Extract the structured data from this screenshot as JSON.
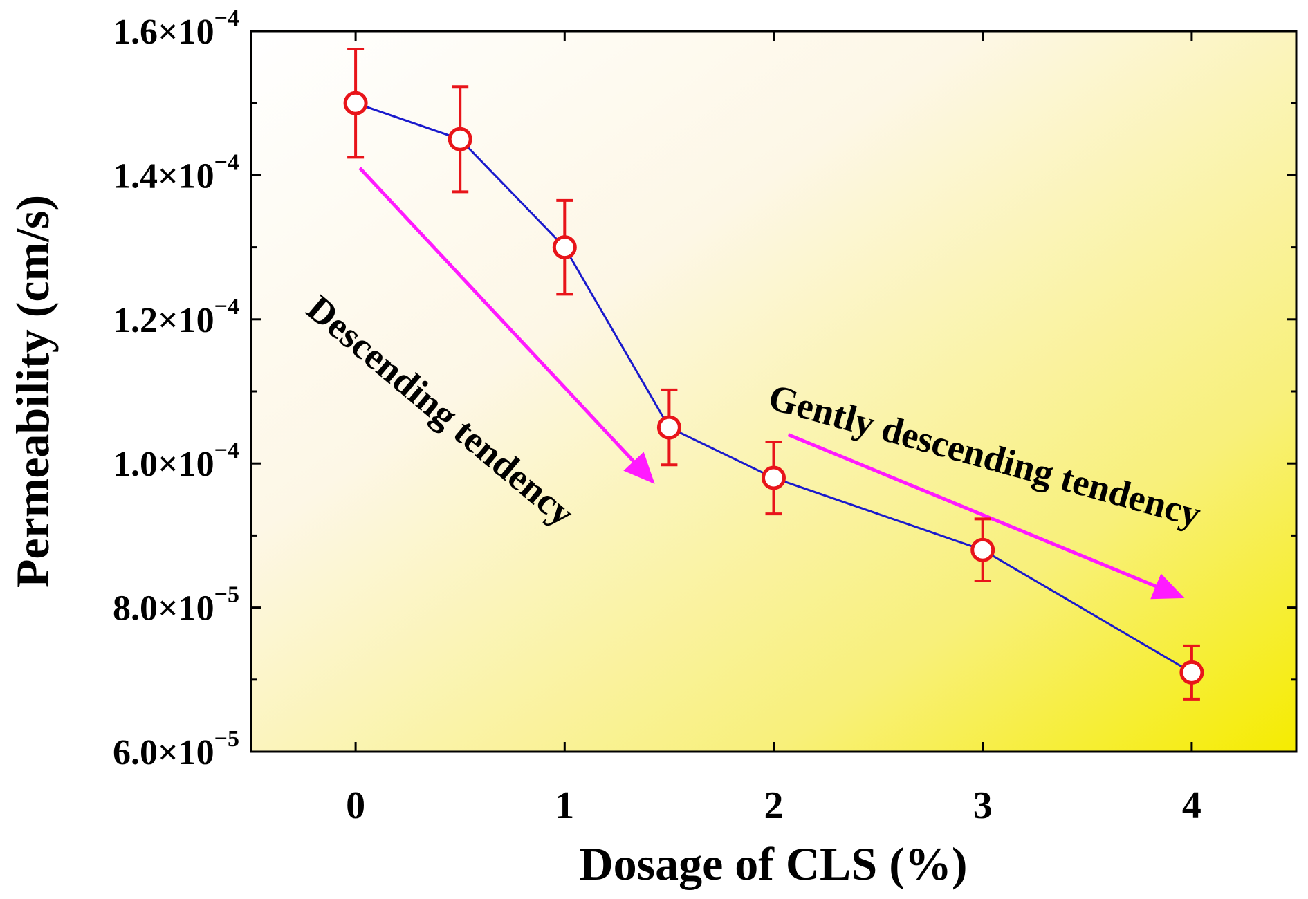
{
  "chart_data": {
    "type": "line",
    "xlabel": "Dosage of CLS (%)",
    "ylabel": "Permeability (cm/s)",
    "xlim": [
      -0.5,
      4.5
    ],
    "ylim": [
      6e-05,
      0.00016
    ],
    "x_ticks": [
      0,
      1,
      2,
      3,
      4
    ],
    "x_tick_labels": [
      "0",
      "1",
      "2",
      "3",
      "4"
    ],
    "y_ticks": [
      {
        "value": 6e-05,
        "mantissa": "6.0×10",
        "exponent": "−5"
      },
      {
        "value": 8e-05,
        "mantissa": "8.0×10",
        "exponent": "−5"
      },
      {
        "value": 0.0001,
        "mantissa": "1.0×10",
        "exponent": "−4"
      },
      {
        "value": 0.00012,
        "mantissa": "1.2×10",
        "exponent": "−4"
      },
      {
        "value": 0.00014,
        "mantissa": "1.4×10",
        "exponent": "−4"
      },
      {
        "value": 0.00016,
        "mantissa": "1.6×10",
        "exponent": "−4"
      }
    ],
    "series": [
      {
        "x": [
          0,
          0.5,
          1,
          1.5,
          2,
          3,
          4
        ],
        "y": [
          0.00015,
          0.000145,
          0.00013,
          0.000105,
          9.8e-05,
          8.8e-05,
          7.1e-05
        ],
        "error": [
          7.5e-06,
          7.3e-06,
          6.5e-06,
          5.2e-06,
          5e-06,
          4.3e-06,
          3.7e-06
        ],
        "line_color": "#1a1acc",
        "marker": "open-circle",
        "marker_color": "#e8141a"
      }
    ],
    "annotations": [
      {
        "text": "Descending tendency",
        "arrow_from": [
          0.02,
          0.000141
        ],
        "arrow_to": [
          1.42,
          9.75e-05
        ]
      },
      {
        "text": "Gently descending tendency",
        "arrow_from": [
          2.07,
          0.000104
        ],
        "arrow_to": [
          3.95,
          8.15e-05
        ]
      }
    ],
    "annotation_arrow_color": "#ff1aff",
    "background_gradient": [
      "#ffffff",
      "#fdf7e6",
      "#f8f07a",
      "#f5ec00"
    ],
    "grid": false,
    "legend": "none"
  }
}
